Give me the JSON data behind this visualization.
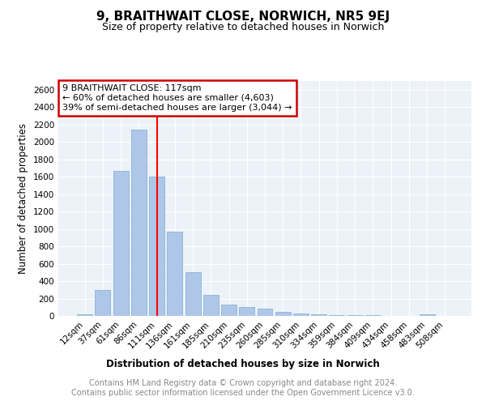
{
  "title": "9, BRAITHWAIT CLOSE, NORWICH, NR5 9EJ",
  "subtitle": "Size of property relative to detached houses in Norwich",
  "xlabel": "Distribution of detached houses by size in Norwich",
  "ylabel": "Number of detached properties",
  "footer_line1": "Contains HM Land Registry data © Crown copyright and database right 2024.",
  "footer_line2": "Contains public sector information licensed under the Open Government Licence v3.0.",
  "categories": [
    "12sqm",
    "37sqm",
    "61sqm",
    "86sqm",
    "111sqm",
    "136sqm",
    "161sqm",
    "185sqm",
    "210sqm",
    "235sqm",
    "260sqm",
    "285sqm",
    "310sqm",
    "334sqm",
    "359sqm",
    "384sqm",
    "409sqm",
    "434sqm",
    "458sqm",
    "483sqm",
    "508sqm"
  ],
  "values": [
    18,
    295,
    1670,
    2145,
    1600,
    965,
    500,
    238,
    128,
    105,
    85,
    48,
    25,
    18,
    10,
    8,
    5,
    3,
    2,
    15,
    2
  ],
  "bar_color": "#aec6e8",
  "bar_edge_color": "#7aaed0",
  "red_line_x": 4.0,
  "annotation_text_line1": "9 BRAITHWAIT CLOSE: 117sqm",
  "annotation_text_line2": "← 60% of detached houses are smaller (4,603)",
  "annotation_text_line3": "39% of semi-detached houses are larger (3,044) →",
  "annotation_box_color": "#ffffff",
  "annotation_box_edge_color": "#cc0000",
  "ylim": [
    0,
    2700
  ],
  "yticks": [
    0,
    200,
    400,
    600,
    800,
    1000,
    1200,
    1400,
    1600,
    1800,
    2000,
    2200,
    2400,
    2600
  ],
  "background_color": "#edf2f9",
  "title_fontsize": 11,
  "subtitle_fontsize": 9,
  "axis_label_fontsize": 8.5,
  "tick_fontsize": 7.5,
  "annotation_fontsize": 8,
  "footer_fontsize": 7
}
